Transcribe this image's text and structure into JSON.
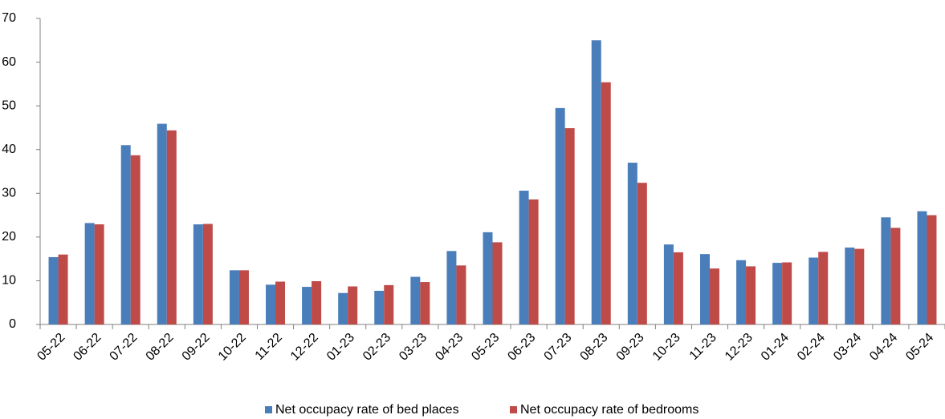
{
  "chart_data": {
    "type": "bar",
    "categories": [
      "05-22",
      "06-22",
      "07-22",
      "08-22",
      "09-22",
      "10-22",
      "11-22",
      "12-22",
      "01-23",
      "02-23",
      "03-23",
      "04-23",
      "05-23",
      "06-23",
      "07-23",
      "08-23",
      "09-23",
      "10-23",
      "11-23",
      "12-23",
      "01-24",
      "02-24",
      "03-24",
      "04-24",
      "05-24"
    ],
    "series": [
      {
        "name": "Net occupacy rate of bed places",
        "color": "#4a7ebb",
        "values": [
          15.4,
          23.2,
          41.0,
          45.9,
          22.9,
          12.4,
          9.1,
          8.6,
          7.2,
          7.7,
          10.9,
          16.8,
          21.1,
          30.6,
          49.5,
          65.0,
          37.0,
          18.3,
          16.1,
          14.7,
          14.1,
          15.3,
          17.6,
          24.5,
          25.9
        ]
      },
      {
        "name": "Net occupacy rate of bedrooms",
        "color": "#be4b48",
        "values": [
          16.0,
          22.9,
          38.7,
          44.4,
          23.0,
          12.4,
          9.8,
          9.9,
          8.7,
          9.0,
          9.7,
          13.5,
          18.8,
          28.6,
          44.9,
          55.4,
          32.4,
          16.5,
          12.8,
          13.3,
          14.2,
          16.6,
          17.3,
          22.1,
          25.0
        ]
      }
    ],
    "ylim": [
      0,
      70
    ],
    "yticks": [
      0,
      10,
      20,
      30,
      40,
      50,
      60,
      70
    ],
    "grid": false,
    "legend": "bottom"
  }
}
